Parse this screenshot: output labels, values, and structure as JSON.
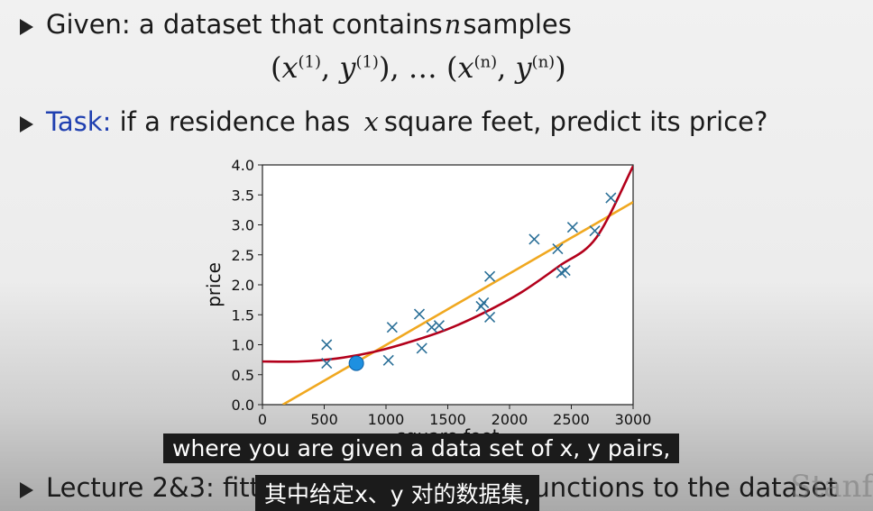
{
  "slide": {
    "line1": {
      "prefix": "Given: a dataset that contains ",
      "var": "n",
      "suffix": " samples"
    },
    "formula": {
      "open": "(",
      "x": "x",
      "sup1": "(1)",
      "comma": ", ",
      "y": "y",
      "close": ")",
      "ellipsis": ", … (",
      "supn": "(n)"
    },
    "line2": {
      "label": "Task:",
      "prefix": " if a residence has ",
      "var": "x",
      "suffix": " square feet, predict its price?"
    },
    "line3": {
      "text": "Lecture 2&3: fitting linear/quadratic functions to the dataset"
    },
    "watermark": "Stanf"
  },
  "subtitles": {
    "english": "where you are given a data set of x, y pairs,",
    "chinese": "其中给定x、y 对的数据集,"
  },
  "colors": {
    "task_label": "#1f3fb0",
    "points": "#2a6f97",
    "linear_fit": "#f0a820",
    "quadratic_fit": "#b3001b",
    "highlight_point": "#1e90e0"
  },
  "chart_data": {
    "type": "scatter",
    "xlabel": "square feet",
    "ylabel": "price",
    "xlim": [
      0,
      3000
    ],
    "ylim": [
      0,
      4.0
    ],
    "xticks": [
      0,
      500,
      1000,
      1500,
      2000,
      2500,
      3000
    ],
    "yticks": [
      "0.0",
      "0.5",
      "1.0",
      "1.5",
      "2.0",
      "2.5",
      "3.0",
      "3.5",
      "4.0"
    ],
    "grid": false,
    "points": [
      {
        "x": 520,
        "y": 1.0
      },
      {
        "x": 520,
        "y": 0.69
      },
      {
        "x": 1020,
        "y": 0.74
      },
      {
        "x": 1050,
        "y": 1.29
      },
      {
        "x": 1270,
        "y": 1.51
      },
      {
        "x": 1290,
        "y": 0.94
      },
      {
        "x": 1370,
        "y": 1.29
      },
      {
        "x": 1430,
        "y": 1.32
      },
      {
        "x": 1770,
        "y": 1.64
      },
      {
        "x": 1790,
        "y": 1.7
      },
      {
        "x": 1840,
        "y": 2.14
      },
      {
        "x": 1840,
        "y": 1.46
      },
      {
        "x": 2200,
        "y": 2.76
      },
      {
        "x": 2390,
        "y": 2.6
      },
      {
        "x": 2420,
        "y": 2.2
      },
      {
        "x": 2450,
        "y": 2.24
      },
      {
        "x": 2510,
        "y": 2.96
      },
      {
        "x": 2690,
        "y": 2.9
      },
      {
        "x": 2820,
        "y": 3.45
      }
    ],
    "highlight": {
      "x": 760,
      "y": 0.69
    },
    "series": [
      {
        "kind": "linear",
        "x": [
          165,
          3000
        ],
        "y": [
          0.0,
          3.38
        ]
      },
      {
        "kind": "quadratic",
        "x": [
          0,
          300,
          600,
          900,
          1200,
          1500,
          1800,
          2100,
          2400,
          2700,
          3000
        ],
        "y": [
          0.72,
          0.72,
          0.77,
          0.88,
          1.05,
          1.26,
          1.54,
          1.88,
          2.31,
          2.78,
          3.98
        ]
      }
    ]
  }
}
